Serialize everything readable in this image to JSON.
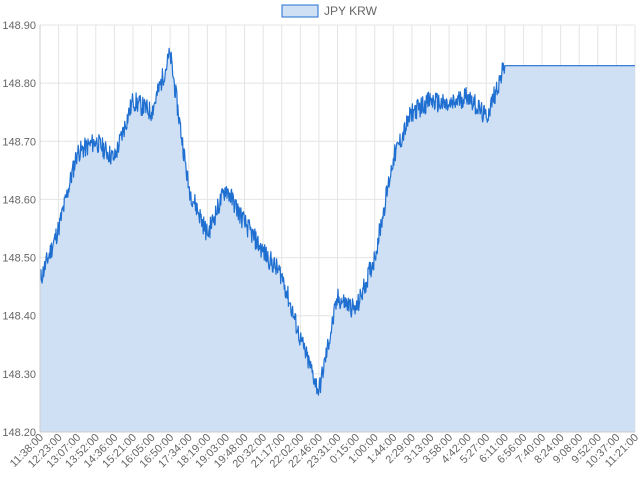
{
  "chart_data": {
    "type": "area",
    "legend": {
      "position": "top",
      "entries": [
        "JPY KRW"
      ]
    },
    "grid": true,
    "ylim": [
      148.2,
      148.9
    ],
    "y_ticks": [
      "148.90",
      "148.80",
      "148.70",
      "148.60",
      "148.50",
      "148.40",
      "148.30",
      "148.20"
    ],
    "x_tick_labels": [
      "11:38:00",
      "12:23:00",
      "13:07:00",
      "13:52:00",
      "14:36:00",
      "15:21:00",
      "16:05:00",
      "16:50:00",
      "17:34:00",
      "18:19:00",
      "19:03:00",
      "19:48:00",
      "20:32:00",
      "21:17:00",
      "22:02:00",
      "22:46:00",
      "23:31:00",
      "0:15:00",
      "1:00:00",
      "1:44:00",
      "2:29:00",
      "3:13:00",
      "3:58:00",
      "4:42:00",
      "5:27:00",
      "6:11:00",
      "6:56:00",
      "7:40:00",
      "8:24:00",
      "9:08:00",
      "9:52:00",
      "10:37:00",
      "11:21:00"
    ],
    "series": [
      {
        "name": "JPY KRW",
        "color": "#1f6fd1",
        "fill": "#cfe0f5",
        "x": [
          "11:38:00",
          "12:23:00",
          "13:07:00",
          "13:52:00",
          "14:36:00",
          "15:21:00",
          "16:05:00",
          "16:50:00",
          "17:34:00",
          "18:19:00",
          "19:03:00",
          "19:48:00",
          "20:32:00",
          "21:17:00",
          "22:02:00",
          "22:46:00",
          "23:31:00",
          "0:15:00",
          "1:00:00",
          "1:44:00",
          "2:29:00",
          "3:13:00",
          "3:58:00",
          "4:42:00",
          "5:27:00",
          "6:11:00",
          "6:56:00",
          "7:40:00",
          "8:24:00",
          "9:08:00",
          "9:52:00",
          "10:37:00",
          "11:21:00"
        ],
        "values": [
          148.46,
          148.55,
          148.68,
          148.7,
          148.67,
          148.77,
          148.75,
          148.85,
          148.62,
          148.54,
          148.62,
          148.56,
          148.51,
          148.47,
          148.36,
          148.27,
          148.43,
          148.41,
          148.5,
          148.67,
          148.75,
          148.77,
          148.76,
          148.78,
          148.74,
          148.83,
          148.83,
          148.83,
          148.83,
          148.83,
          148.83,
          148.83,
          148.83
        ]
      }
    ]
  }
}
